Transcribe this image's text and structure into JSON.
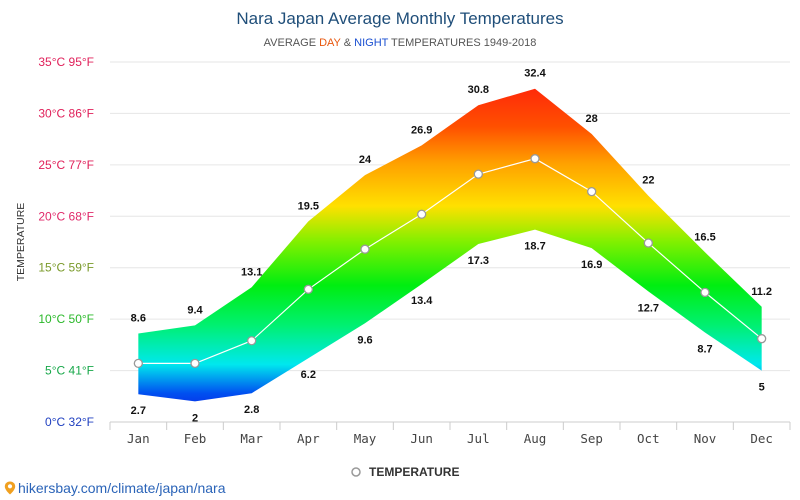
{
  "chart_data": {
    "type": "area",
    "title": "Nara Japan Average Monthly Temperatures",
    "subtitle": {
      "prefix": "AVERAGE ",
      "day": "DAY",
      "amp": " & ",
      "night": "NIGHT",
      "suffix": " TEMPERATURES 1949-2018"
    },
    "ylabel": "TEMPERATURE",
    "ylim": [
      0,
      35
    ],
    "y_ticks": [
      {
        "value": 0,
        "label": "0°C 32°F"
      },
      {
        "value": 5,
        "label": "5°C 41°F"
      },
      {
        "value": 10,
        "label": "10°C 50°F"
      },
      {
        "value": 15,
        "label": "15°C 59°F"
      },
      {
        "value": 20,
        "label": "20°C 68°F"
      },
      {
        "value": 25,
        "label": "25°C 77°F"
      },
      {
        "value": 30,
        "label": "30°C 86°F"
      },
      {
        "value": 35,
        "label": "35°C 95°F"
      }
    ],
    "categories": [
      "Jan",
      "Feb",
      "Mar",
      "Apr",
      "May",
      "Jun",
      "Jul",
      "Aug",
      "Sep",
      "Oct",
      "Nov",
      "Dec"
    ],
    "day_high": [
      8.6,
      9.4,
      13.1,
      19.5,
      24,
      26.9,
      30.8,
      32.4,
      28,
      22,
      16.5,
      11.2
    ],
    "night_low": [
      2.7,
      2,
      2.8,
      6.2,
      9.6,
      13.4,
      17.3,
      18.7,
      16.9,
      12.7,
      8.7,
      5
    ],
    "series": [
      {
        "name": "TEMPERATURE",
        "values": [
          5.7,
          5.7,
          7.9,
          12.9,
          16.8,
          20.2,
          24.1,
          25.6,
          22.4,
          17.4,
          12.6,
          8.1
        ]
      }
    ],
    "grid": true,
    "legend_position": "bottom-center",
    "colors": {
      "hot": "#ff2020",
      "warm": "#ffd000",
      "mild": "#00e020",
      "cool": "#00e0e0",
      "cold": "#1010e0",
      "line": "#ffffff",
      "marker_stroke": "#999999"
    }
  },
  "footer": {
    "url": "hikersbay.com/climate/japan/nara"
  }
}
